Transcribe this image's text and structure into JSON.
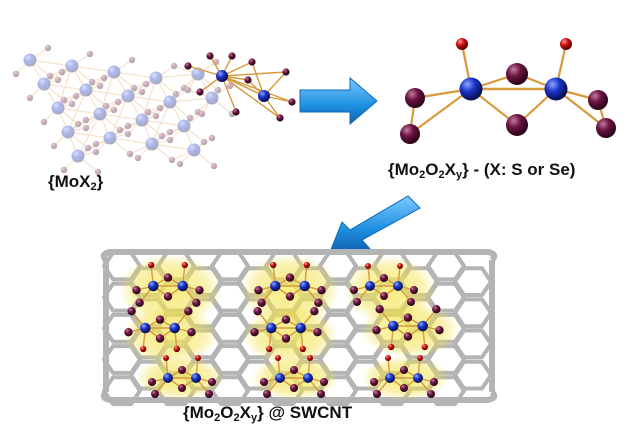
{
  "labels": {
    "lattice": {
      "open": "{MoX",
      "sub1": "2",
      "close": "}"
    },
    "cluster": {
      "open": "{Mo",
      "sub1": "2",
      "mid1": "O",
      "sub2": "2",
      "mid2": "X",
      "sub3": "y",
      "close": "} - (X: S or Se)"
    },
    "composite": {
      "open": "{Mo",
      "sub1": "2",
      "mid1": "O",
      "sub2": "2",
      "mid2": "X",
      "sub3": "y",
      "close": "} @ SWCNT"
    }
  },
  "colors": {
    "mo": "#1a34c8",
    "x_atom": "#6a1440",
    "oxygen": "#d01010",
    "bond": "#d89a3c",
    "arrow": "#1e8fe0",
    "nanotube": "#b4b4b4",
    "glow": "#f2e24a"
  },
  "icons": [
    "right-arrow-icon",
    "down-left-arrow-icon"
  ]
}
